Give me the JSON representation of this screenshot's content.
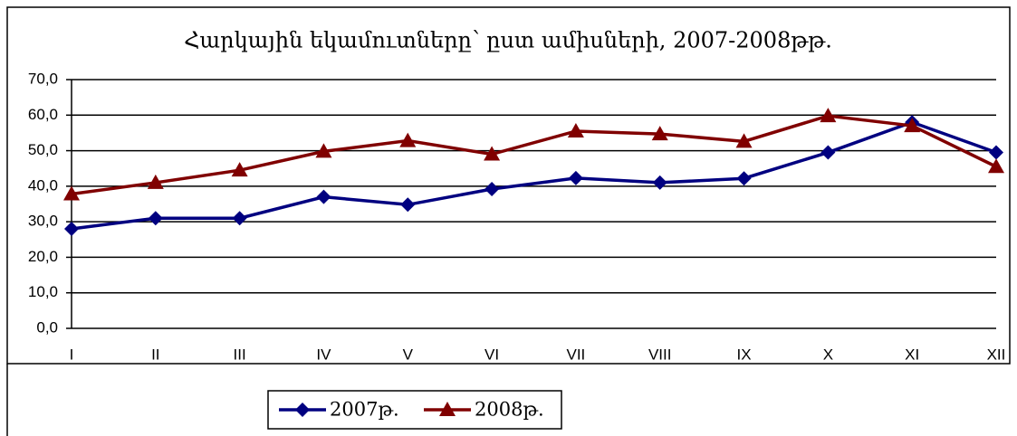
{
  "chart_data": {
    "type": "line",
    "title": "Հարկային եկամուտները՝ ըստ ամիսների, 2007-2008թթ.",
    "categories": [
      "I",
      "II",
      "III",
      "IV",
      "V",
      "VI",
      "VII",
      "VIII",
      "IX",
      "X",
      "XI",
      "XII"
    ],
    "series": [
      {
        "name": "2007թ.",
        "color": "#000080",
        "marker": "diamond",
        "values": [
          28.0,
          31.0,
          31.0,
          37.0,
          34.8,
          39.2,
          42.3,
          41.0,
          42.2,
          49.5,
          58.0,
          49.5
        ]
      },
      {
        "name": "2008թ.",
        "color": "#800000",
        "marker": "triangle",
        "values": [
          37.8,
          41.0,
          44.5,
          49.8,
          52.8,
          49.0,
          55.5,
          54.7,
          52.6,
          59.8,
          57.0,
          45.5
        ]
      }
    ],
    "ylim": [
      0,
      70
    ],
    "yticks": [
      {
        "value": 0,
        "label": "0,0"
      },
      {
        "value": 10,
        "label": "10,0"
      },
      {
        "value": 20,
        "label": "20,0"
      },
      {
        "value": 30,
        "label": "30,0"
      },
      {
        "value": 40,
        "label": "40,0"
      },
      {
        "value": 50,
        "label": "50,0"
      },
      {
        "value": 60,
        "label": "60,0"
      },
      {
        "value": 70,
        "label": "70,0"
      }
    ],
    "grid": true
  }
}
